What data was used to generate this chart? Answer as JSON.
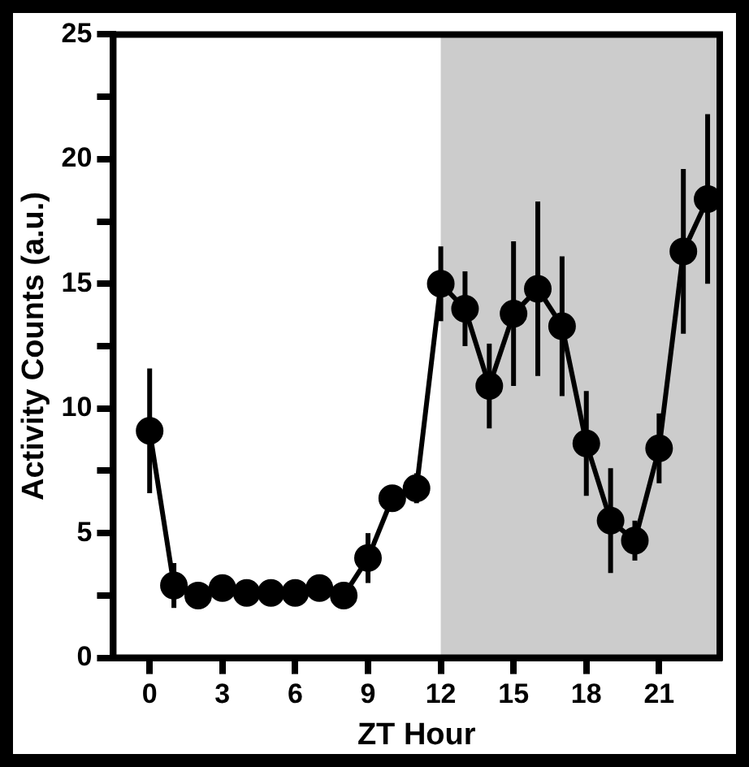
{
  "chart_data": {
    "type": "line",
    "xlabel": "ZT Hour",
    "ylabel": "Activity Counts (a.u.)",
    "x": [
      0,
      1,
      2,
      3,
      4,
      5,
      6,
      7,
      8,
      9,
      10,
      11,
      12,
      13,
      14,
      15,
      16,
      17,
      18,
      19,
      20,
      21,
      22,
      23
    ],
    "series": [
      {
        "color": "#000000",
        "values": [
          9.1,
          2.9,
          2.5,
          2.8,
          2.6,
          2.6,
          2.6,
          2.8,
          2.5,
          4.0,
          6.4,
          6.8,
          15.0,
          14.0,
          10.9,
          13.8,
          14.8,
          13.3,
          8.6,
          5.5,
          4.7,
          8.4,
          16.3,
          18.4
        ],
        "errors": [
          2.5,
          0.9,
          0.3,
          0.5,
          0.3,
          0.3,
          0.4,
          0.4,
          0.3,
          1.0,
          0.3,
          0.6,
          1.5,
          1.5,
          1.7,
          2.9,
          3.5,
          2.8,
          2.1,
          2.1,
          0.8,
          1.4,
          3.3,
          3.4
        ]
      }
    ],
    "xlim": [
      -1.5,
      23.5
    ],
    "xticks": [
      0,
      3,
      6,
      9,
      12,
      15,
      18,
      21
    ],
    "ylim": [
      0,
      25
    ],
    "yticks": [
      0,
      {
        "value": 2.5,
        "label": null
      },
      5,
      {
        "value": 7.5,
        "label": null
      },
      10,
      {
        "value": 12.5,
        "label": null
      },
      15,
      {
        "value": 17.5,
        "label": null
      },
      20,
      {
        "value": 22.5,
        "label": null
      },
      25
    ],
    "bands": [
      {
        "axis": "x",
        "from": 12,
        "to": 23.5,
        "color": "#cccccc"
      }
    ],
    "grid": false,
    "legend": false,
    "marker": "circle",
    "line_style": "solid"
  }
}
